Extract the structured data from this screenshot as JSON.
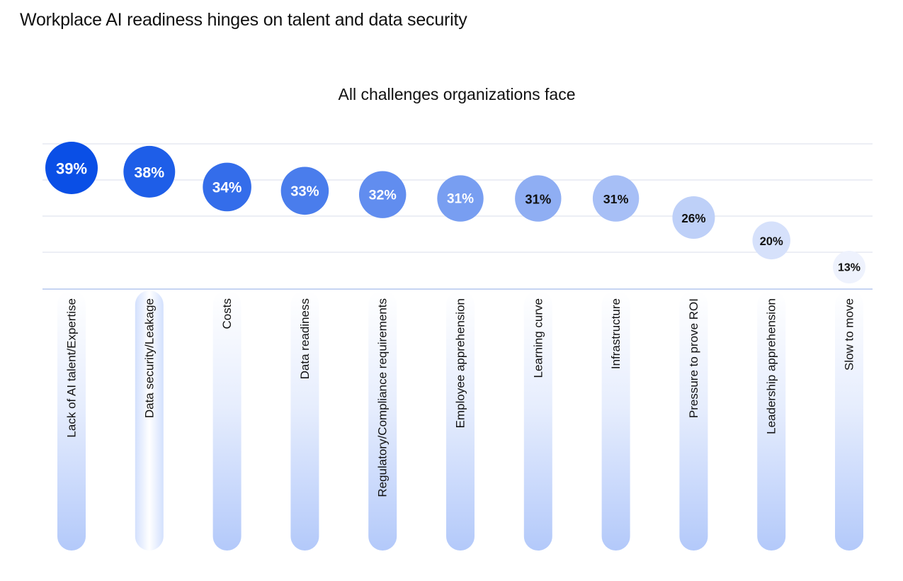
{
  "page": {
    "title": "Workplace AI readiness hinges on talent and data security"
  },
  "chart_data": {
    "type": "scatter",
    "title": "All challenges organizations face",
    "categories": [
      "Lack of AI talent/Expertise",
      "Data security/Leakage",
      "Costs",
      "Data readiness",
      "Regulatory/Compliance requirements",
      "Employee apprehension",
      "Learning curve",
      "Infrastructure",
      "Pressure to prove ROI",
      "Leadership apprehension",
      "Slow to move"
    ],
    "values": [
      39,
      38,
      34,
      33,
      32,
      31,
      31,
      31,
      26,
      20,
      13
    ],
    "value_labels": [
      "39%",
      "38%",
      "34%",
      "33%",
      "32%",
      "31%",
      "31%",
      "31%",
      "26%",
      "20%",
      "13%"
    ],
    "xlabel": "",
    "ylabel": "",
    "grid": true,
    "colors": {
      "bubble_strong": "#0a4fe6",
      "bubble_light": "#eef2fd",
      "gridline": "#e6e9f2",
      "baseline": "#b4c6ee",
      "pill_top": "#ffffff",
      "pill_bottom": "#b3c9fa"
    }
  }
}
